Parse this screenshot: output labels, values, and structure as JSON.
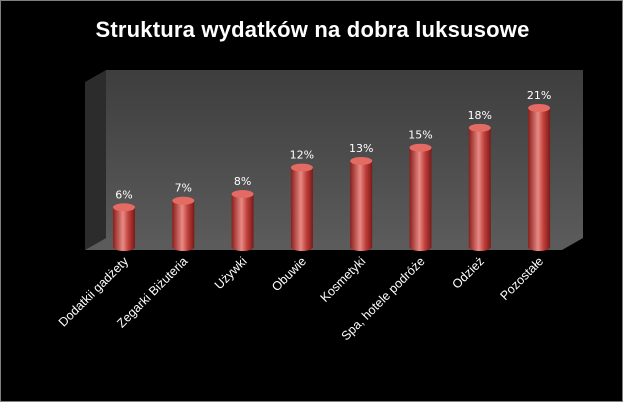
{
  "chart_data": {
    "type": "bar",
    "title": "Struktura wydatków na dobra luksusowe",
    "categories": [
      "Dodatkii gadżety",
      "Zegarki Biżuteria",
      "Używki",
      "Obuwie",
      "Kosmetyki",
      "Spa, hotele podróże",
      "Odzież",
      "Pozostałe"
    ],
    "values": [
      6,
      7,
      8,
      12,
      13,
      15,
      18,
      21
    ],
    "labels": [
      "6%",
      "7%",
      "8%",
      "12%",
      "13%",
      "15%",
      "18%",
      "21%"
    ],
    "ylim": [
      0,
      21
    ],
    "grid": false,
    "legend": "none",
    "colors": {
      "background": "#000000",
      "wall": "#4a4a4a",
      "floor": "#555555",
      "bar": "#c0403c",
      "bar_dark": "#8a1f1c",
      "bar_light": "#e88a84"
    }
  }
}
